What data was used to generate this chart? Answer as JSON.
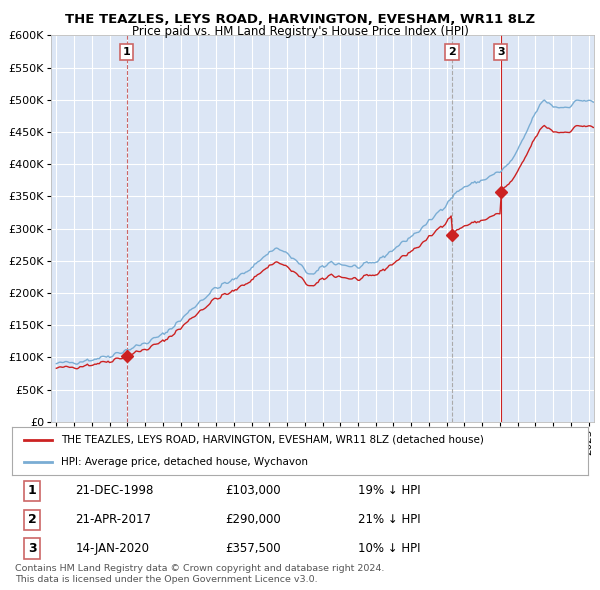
{
  "title": "THE TEAZLES, LEYS ROAD, HARVINGTON, EVESHAM, WR11 8LZ",
  "subtitle": "Price paid vs. HM Land Registry's House Price Index (HPI)",
  "background_color": "#ffffff",
  "plot_bg_color": "#dce6f5",
  "grid_color": "#ffffff",
  "sale_info": [
    {
      "label": "1",
      "date": "21-DEC-1998",
      "price": "£103,000",
      "hpi": "19% ↓ HPI"
    },
    {
      "label": "2",
      "date": "21-APR-2017",
      "price": "£290,000",
      "hpi": "21% ↓ HPI"
    },
    {
      "label": "3",
      "date": "14-JAN-2020",
      "price": "£357,500",
      "hpi": "10% ↓ HPI"
    }
  ],
  "legend_property_label": "THE TEAZLES, LEYS ROAD, HARVINGTON, EVESHAM, WR11 8LZ (detached house)",
  "legend_hpi_label": "HPI: Average price, detached house, Wychavon",
  "footer1": "Contains HM Land Registry data © Crown copyright and database right 2024.",
  "footer2": "This data is licensed under the Open Government Licence v3.0.",
  "hpi_color": "#7aadd4",
  "property_color": "#cc2222",
  "sale_marker_color": "#cc2222",
  "vline1_color": "#cc6666",
  "vline2_color": "#aaaaaa",
  "vline3_color": "#cc2222",
  "ylim": [
    0,
    600000
  ],
  "yticks": [
    0,
    50000,
    100000,
    150000,
    200000,
    250000,
    300000,
    350000,
    400000,
    450000,
    500000,
    550000,
    600000
  ],
  "ytick_labels": [
    "£0",
    "£50K",
    "£100K",
    "£150K",
    "£200K",
    "£250K",
    "£300K",
    "£350K",
    "£400K",
    "£450K",
    "£500K",
    "£550K",
    "£600K"
  ],
  "sale1_x": 1998.96,
  "sale2_x": 2017.29,
  "sale3_x": 2020.04,
  "sale1_y": 103000,
  "sale2_y": 290000,
  "sale3_y": 357500,
  "xlim_start": 1994.7,
  "xlim_end": 2025.3
}
